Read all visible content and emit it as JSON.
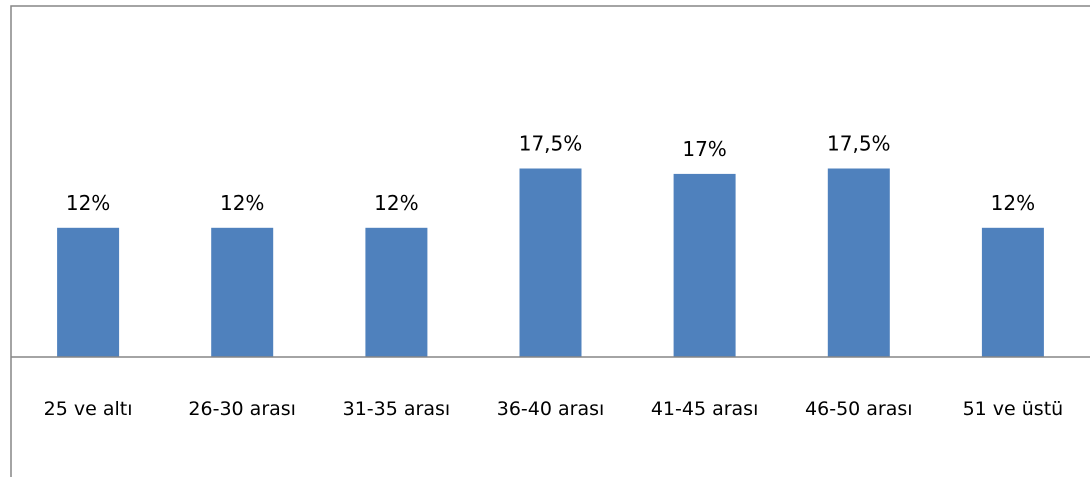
{
  "chart_data": {
    "type": "bar",
    "title": "",
    "xlabel": "",
    "ylabel": "",
    "categories": [
      "25 ve altı",
      "26-30 arası",
      "31-35 arası",
      "36-40 arası",
      "41-45 arası",
      "46-50 arası",
      "51 ve üstü"
    ],
    "values": [
      12,
      12,
      12,
      17.5,
      17,
      17.5,
      12
    ],
    "data_labels": [
      "12%",
      "12%",
      "12%",
      "17,5%",
      "17%",
      "17,5%",
      "12%"
    ],
    "ylim": [
      0,
      30
    ],
    "grid": false,
    "legend": "none",
    "colors": {
      "bar": "#4F81BD",
      "axis": "#868686",
      "frame": "#868686"
    }
  }
}
